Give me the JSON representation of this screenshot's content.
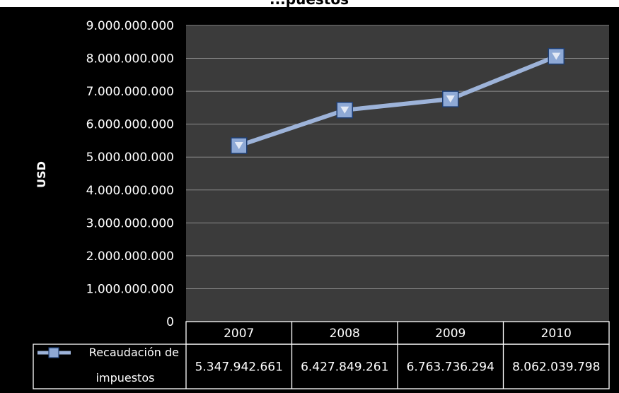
{
  "chart_data": {
    "type": "line",
    "title": "...puestos",
    "ylabel": "USD",
    "xlabel": "",
    "ylim": [
      0,
      9000000000
    ],
    "yticks": [
      0,
      1000000000,
      2000000000,
      3000000000,
      4000000000,
      5000000000,
      6000000000,
      7000000000,
      8000000000,
      9000000000
    ],
    "ytick_labels": [
      "0",
      "1.000.000.000",
      "2.000.000.000",
      "3.000.000.000",
      "4.000.000.000",
      "5.000.000.000",
      "6.000.000.000",
      "7.000.000.000",
      "8.000.000.000",
      "9.000.000.000"
    ],
    "categories": [
      "2007",
      "2008",
      "2009",
      "2010"
    ],
    "series": [
      {
        "name": "Recaudación de impuestos",
        "values": [
          5347942661,
          6427849261,
          6763736294,
          8062039798
        ],
        "value_labels": [
          "5.347.942.661",
          "6.427.849.261",
          "6.763.736.294",
          "8.062.039.798"
        ]
      }
    ],
    "data_table": true,
    "grid": true,
    "legend": "data-table",
    "colors": {
      "background": "#000000",
      "plot_area": "#3b3b3b",
      "gridline": "#8c8c8c",
      "line": "#9db3d9",
      "marker_fill": "#8ea9d6",
      "marker_border": "#1f3f74",
      "table_border": "#ffffff"
    }
  }
}
